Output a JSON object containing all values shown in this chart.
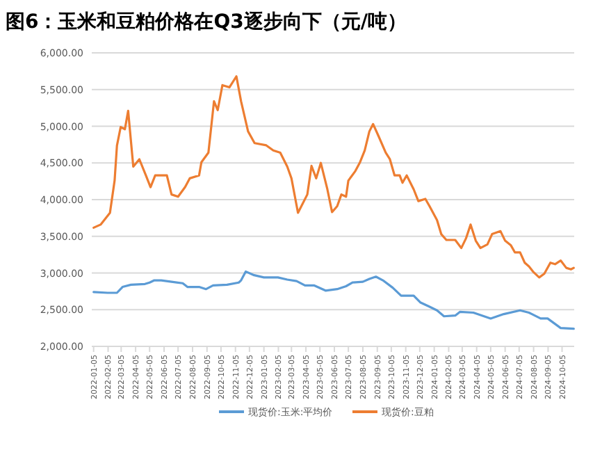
{
  "chart_data": {
    "type": "line",
    "title": "图6：玉米和豆粕价格在Q3逐步向下（元/吨）",
    "xlim": [
      "2022-01-01",
      "2024-10-31"
    ],
    "xticks": [
      {
        "value": "2022-01-05",
        "label": "2022-01-05"
      },
      {
        "value": "2022-02-05",
        "label": "2022-02-05"
      },
      {
        "value": "2022-03-05",
        "label": "2022-03-05"
      },
      {
        "value": "2022-04-05",
        "label": "2022-04-05"
      },
      {
        "value": "2022-05-05",
        "label": "2022-05-05"
      },
      {
        "value": "2022-06-05",
        "label": "2022-06-05"
      },
      {
        "value": "2022-07-05",
        "label": "2022-07-05"
      },
      {
        "value": "2022-08-05",
        "label": "2022-08-05"
      },
      {
        "value": "2022-09-05",
        "label": "2022-09-05"
      },
      {
        "value": "2022-10-05",
        "label": "2022-10-05"
      },
      {
        "value": "2022-11-05",
        "label": "2022-11-05"
      },
      {
        "value": "2022-12-05",
        "label": "2022-12-05"
      },
      {
        "value": "2023-01-05",
        "label": "2023-01-05"
      },
      {
        "value": "2023-02-05",
        "label": "2023-02-05"
      },
      {
        "value": "2023-03-05",
        "label": "2023-03-05"
      },
      {
        "value": "2023-04-05",
        "label": "2023-04-05"
      },
      {
        "value": "2023-05-05",
        "label": "2023-05-05"
      },
      {
        "value": "2023-06-05",
        "label": "2023-06-05"
      },
      {
        "value": "2023-07-05",
        "label": "2023-07-05"
      },
      {
        "value": "2023-08-05",
        "label": "2023-08-05"
      },
      {
        "value": "2023-09-05",
        "label": "2023-09-05"
      },
      {
        "value": "2023-10-05",
        "label": "2023-10-05"
      },
      {
        "value": "2023-11-05",
        "label": "2023-11-05"
      },
      {
        "value": "2023-12-05",
        "label": "2023-12-05"
      },
      {
        "value": "2024-01-05",
        "label": "2024-01-05"
      },
      {
        "value": "2024-02-05",
        "label": "2024-02-05"
      },
      {
        "value": "2024-03-05",
        "label": "2024-03-05"
      },
      {
        "value": "2024-04-05",
        "label": "2024-04-05"
      },
      {
        "value": "2024-05-05",
        "label": "2024-05-05"
      },
      {
        "value": "2024-06-05",
        "label": "2024-06-05"
      },
      {
        "value": "2024-07-05",
        "label": "2024-07-05"
      },
      {
        "value": "2024-08-05",
        "label": "2024-08-05"
      },
      {
        "value": "2024-09-05",
        "label": "2024-09-05"
      },
      {
        "value": "2024-10-05",
        "label": "2024-10-05"
      }
    ],
    "ylim": [
      2000,
      6000
    ],
    "yticks": [
      {
        "value": 2000,
        "label": "2,000.00"
      },
      {
        "value": 2500,
        "label": "2,500.00"
      },
      {
        "value": 3000,
        "label": "3,000.00"
      },
      {
        "value": 3500,
        "label": "3,500.00"
      },
      {
        "value": 4000,
        "label": "4,000.00"
      },
      {
        "value": 4500,
        "label": "4,500.00"
      },
      {
        "value": 5000,
        "label": "5,000.00"
      },
      {
        "value": 5500,
        "label": "5,500.00"
      },
      {
        "value": 6000,
        "label": "6,000.00"
      }
    ],
    "grid": "y",
    "legend": "bottom",
    "series": [
      {
        "name": "现货价:玉米:平均价",
        "color": "#5b9bd5",
        "x": [
          "2022-01-05",
          "2022-02-04",
          "2022-02-24",
          "2022-03-08",
          "2022-03-26",
          "2022-04-25",
          "2022-05-05",
          "2022-05-15",
          "2022-05-30",
          "2022-06-21",
          "2022-07-15",
          "2022-07-25",
          "2022-08-19",
          "2022-09-03",
          "2022-09-18",
          "2022-10-18",
          "2022-11-12",
          "2022-11-17",
          "2022-11-27",
          "2022-12-15",
          "2023-01-05",
          "2023-02-04",
          "2023-02-24",
          "2023-03-16",
          "2023-04-03",
          "2023-04-23",
          "2023-05-17",
          "2023-06-11",
          "2023-06-30",
          "2023-07-14",
          "2023-08-05",
          "2023-08-19",
          "2023-09-02",
          "2023-09-17",
          "2023-10-08",
          "2023-10-26",
          "2023-11-22",
          "2023-12-06",
          "2023-12-26",
          "2024-01-11",
          "2024-01-26",
          "2024-02-19",
          "2024-02-29",
          "2024-03-29",
          "2024-05-05",
          "2024-06-02",
          "2024-07-07",
          "2024-07-26",
          "2024-08-20",
          "2024-09-04",
          "2024-10-02",
          "2024-10-30"
        ],
        "values": [
          2740,
          2730,
          2730,
          2810,
          2840,
          2850,
          2870,
          2900,
          2900,
          2880,
          2860,
          2810,
          2810,
          2780,
          2830,
          2840,
          2870,
          2900,
          3020,
          2970,
          2940,
          2940,
          2910,
          2890,
          2830,
          2830,
          2760,
          2780,
          2820,
          2870,
          2880,
          2920,
          2950,
          2900,
          2800,
          2690,
          2690,
          2600,
          2540,
          2490,
          2410,
          2420,
          2470,
          2460,
          2380,
          2440,
          2490,
          2460,
          2380,
          2380,
          2250,
          2240
        ]
      },
      {
        "name": "现货价:豆粕",
        "color": "#ed7d31",
        "x": [
          "2022-01-05",
          "2022-01-20",
          "2022-02-09",
          "2022-02-19",
          "2022-02-24",
          "2022-03-04",
          "2022-03-13",
          "2022-03-20",
          "2022-03-31",
          "2022-04-13",
          "2022-04-27",
          "2022-05-07",
          "2022-05-17",
          "2022-06-11",
          "2022-06-21",
          "2022-07-05",
          "2022-07-20",
          "2022-07-30",
          "2022-08-19",
          "2022-08-24",
          "2022-09-08",
          "2022-09-13",
          "2022-09-20",
          "2022-09-28",
          "2022-10-08",
          "2022-10-23",
          "2022-11-07",
          "2022-11-17",
          "2022-12-02",
          "2022-12-16",
          "2023-01-10",
          "2023-01-25",
          "2023-02-09",
          "2023-02-24",
          "2023-03-05",
          "2023-03-19",
          "2023-04-08",
          "2023-04-17",
          "2023-04-27",
          "2023-05-07",
          "2023-05-21",
          "2023-05-31",
          "2023-06-11",
          "2023-06-20",
          "2023-06-30",
          "2023-07-05",
          "2023-07-20",
          "2023-07-30",
          "2023-08-09",
          "2023-08-19",
          "2023-08-27",
          "2023-09-08",
          "2023-09-23",
          "2023-10-02",
          "2023-10-12",
          "2023-10-23",
          "2023-10-29",
          "2023-11-07",
          "2023-11-22",
          "2023-12-02",
          "2023-12-17",
          "2023-12-26",
          "2024-01-11",
          "2024-01-20",
          "2024-01-31",
          "2024-02-19",
          "2024-03-03",
          "2024-03-13",
          "2024-03-23",
          "2024-04-03",
          "2024-04-13",
          "2024-04-28",
          "2024-05-08",
          "2024-05-26",
          "2024-06-05",
          "2024-06-17",
          "2024-06-26",
          "2024-07-07",
          "2024-07-17",
          "2024-07-26",
          "2024-08-05",
          "2024-08-17",
          "2024-08-28",
          "2024-09-10",
          "2024-09-20",
          "2024-10-02",
          "2024-10-14",
          "2024-10-24",
          "2024-10-30"
        ],
        "values": [
          3617,
          3660,
          3820,
          4260,
          4736,
          4990,
          4960,
          5210,
          4450,
          4550,
          4330,
          4170,
          4330,
          4330,
          4070,
          4040,
          4170,
          4290,
          4330,
          4510,
          4640,
          4930,
          5340,
          5220,
          5560,
          5530,
          5680,
          5340,
          4930,
          4770,
          4740,
          4670,
          4640,
          4450,
          4290,
          3820,
          4070,
          4460,
          4290,
          4500,
          4140,
          3830,
          3910,
          4070,
          4040,
          4260,
          4390,
          4510,
          4670,
          4930,
          5030,
          4860,
          4640,
          4550,
          4330,
          4330,
          4230,
          4330,
          4140,
          3980,
          4010,
          3910,
          3720,
          3530,
          3450,
          3450,
          3340,
          3470,
          3660,
          3440,
          3340,
          3390,
          3530,
          3570,
          3440,
          3380,
          3280,
          3280,
          3140,
          3090,
          3010,
          2940,
          2990,
          3140,
          3120,
          3170,
          3070,
          3050,
          3070
        ]
      }
    ]
  }
}
